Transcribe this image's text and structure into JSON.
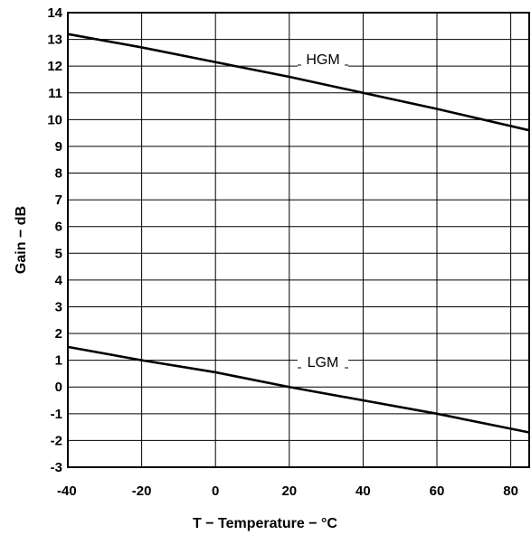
{
  "chart_data": {
    "type": "line",
    "title": "",
    "xlabel": "T − Temperature − °C",
    "ylabel": "Gain − dB",
    "xlim": [
      -40,
      85
    ],
    "ylim": [
      -3,
      14
    ],
    "x_ticks": [
      -40,
      -20,
      0,
      20,
      40,
      60,
      80
    ],
    "y_ticks": [
      14,
      13,
      12,
      11,
      10,
      9,
      8,
      7,
      6,
      5,
      4,
      3,
      2,
      1,
      0,
      -1,
      -2,
      -3
    ],
    "grid": true,
    "series": [
      {
        "name": "HGM",
        "x": [
          -40,
          -20,
          0,
          20,
          40,
          60,
          85
        ],
        "values": [
          13.2,
          12.7,
          12.15,
          11.6,
          11.0,
          10.4,
          9.6
        ]
      },
      {
        "name": "LGM",
        "x": [
          -40,
          -20,
          0,
          20,
          40,
          60,
          85
        ],
        "values": [
          1.5,
          1.0,
          0.55,
          0.0,
          -0.5,
          -1.0,
          -1.7
        ]
      }
    ]
  }
}
